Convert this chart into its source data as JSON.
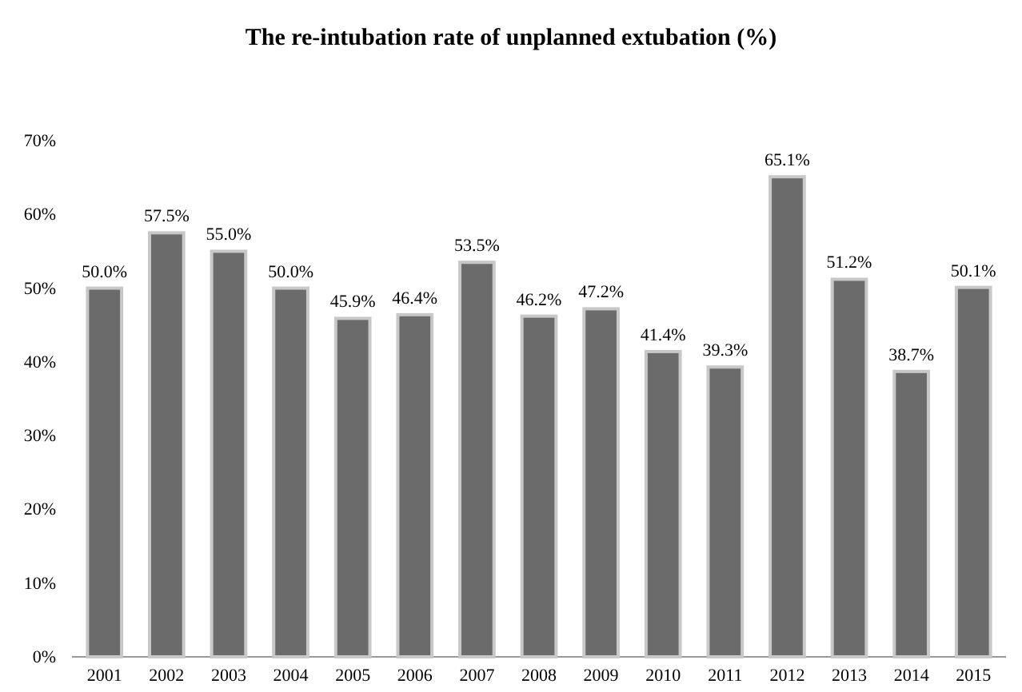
{
  "chart_data": {
    "type": "bar",
    "title": "The re-intubation rate of unplanned extubation (%)",
    "categories": [
      "2001",
      "2002",
      "2003",
      "2004",
      "2005",
      "2006",
      "2007",
      "2008",
      "2009",
      "2010",
      "2011",
      "2012",
      "2013",
      "2014",
      "2015"
    ],
    "values": [
      50.0,
      57.5,
      55.0,
      50.0,
      45.9,
      46.4,
      53.5,
      46.2,
      47.2,
      41.4,
      39.3,
      65.1,
      51.2,
      38.7,
      50.1
    ],
    "value_labels": [
      "50.0%",
      "57.5%",
      "55.0%",
      "50.0%",
      "45.9%",
      "46.4%",
      "53.5%",
      "46.2%",
      "47.2%",
      "41.4%",
      "39.3%",
      "65.1%",
      "51.2%",
      "38.7%",
      "50.1%"
    ],
    "color": "#6b6b6b",
    "ylim": [
      0,
      70
    ],
    "yticks": [
      {
        "value": 0,
        "label": "0%"
      },
      {
        "value": 10,
        "label": "10%"
      },
      {
        "value": 20,
        "label": "20%"
      },
      {
        "value": 30,
        "label": "30%"
      },
      {
        "value": 40,
        "label": "40%"
      },
      {
        "value": 50,
        "label": "50%"
      },
      {
        "value": 60,
        "label": "60%"
      },
      {
        "value": 70,
        "label": "70%"
      }
    ],
    "grid": false
  }
}
